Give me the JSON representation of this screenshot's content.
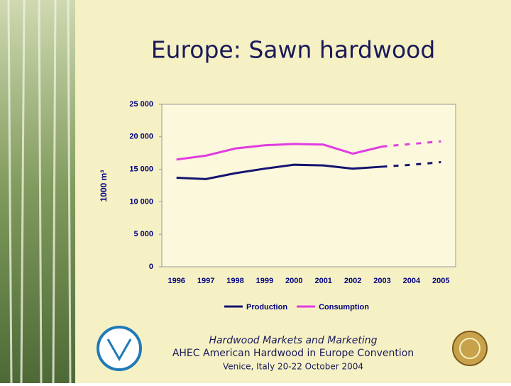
{
  "chart_data": {
    "type": "line",
    "title": "Europe: Sawn hardwood",
    "y_label": "1000 m³",
    "categories": [
      "1996",
      "1997",
      "1998",
      "1999",
      "2000",
      "2001",
      "2002",
      "2003",
      "2004",
      "2005"
    ],
    "series": [
      {
        "name": "Production",
        "color": "#141470",
        "values": [
          13700,
          13500,
          14400,
          15100,
          15700,
          15600,
          15100,
          15400,
          15700,
          16100
        ]
      },
      {
        "name": "Consumption",
        "color": "#e03ce0",
        "values": [
          16500,
          17100,
          18200,
          18700,
          18900,
          18800,
          17400,
          18500,
          18900,
          19300
        ]
      }
    ],
    "dash_from": "2003",
    "ylim": [
      0,
      25000
    ],
    "yticks": [
      0,
      {
        "value": 5000,
        "label": "5 000"
      },
      {
        "value": 10000,
        "label": "10 000"
      },
      {
        "value": 15000,
        "label": "15 000"
      },
      {
        "value": 20000,
        "label": "20 000"
      },
      {
        "value": 25000,
        "label": "25 000"
      }
    ],
    "legend": "bottom"
  },
  "footer": {
    "lines": [
      "Hardwood Markets and Marketing",
      "AHEC American Hardwood in Europe Convention",
      "Venice, Italy 20-22 October 2004"
    ]
  }
}
